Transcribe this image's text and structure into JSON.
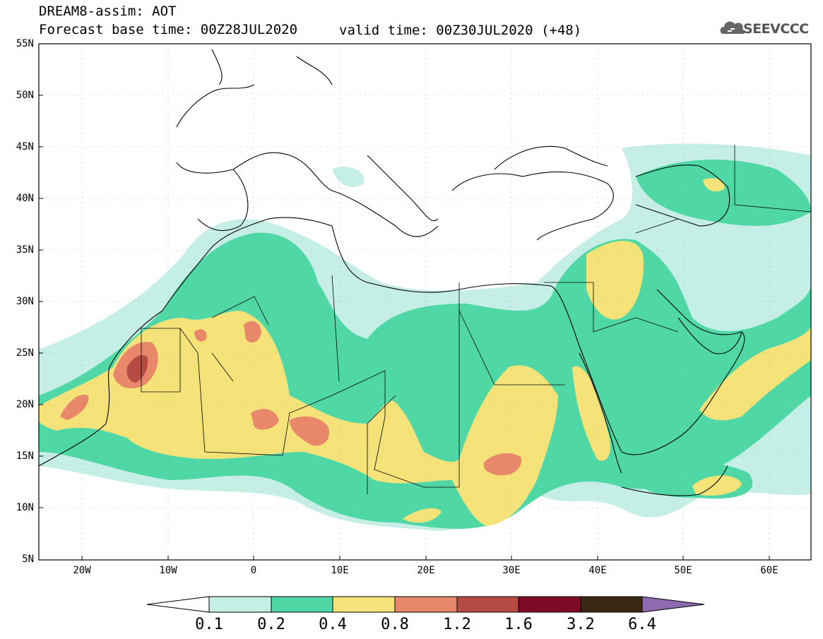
{
  "header": {
    "title_line1": "DREAM8-assim: AOT",
    "title_line2": "Forecast base time: 00Z28JUL2020",
    "valid_time": "valid time: 00Z30JUL2020 (+48)",
    "logo_text": "SEEVCCC"
  },
  "axes": {
    "lat_labels": [
      "55N",
      "50N",
      "45N",
      "40N",
      "35N",
      "30N",
      "25N",
      "20N",
      "15N",
      "10N",
      "5N"
    ],
    "lon_labels": [
      "20W",
      "10W",
      "0",
      "10E",
      "20E",
      "30E",
      "40E",
      "50E",
      "60E"
    ]
  },
  "colorbar": {
    "labels": [
      "0.1",
      "0.2",
      "0.4",
      "0.8",
      "1.2",
      "1.6",
      "3.2",
      "6.4"
    ],
    "colors": [
      "#ffffff",
      "#c5efe6",
      "#4fd8a6",
      "#f5e37a",
      "#e8876a",
      "#b44c43",
      "#7d0a26",
      "#3a2815",
      "#8e6bb0"
    ]
  },
  "colors": {
    "level_0_1": "#c5efe6",
    "level_0_2": "#4fd8a6",
    "level_0_4": "#f5e37a",
    "level_0_8": "#e8876a",
    "level_1_2": "#b44c43"
  }
}
